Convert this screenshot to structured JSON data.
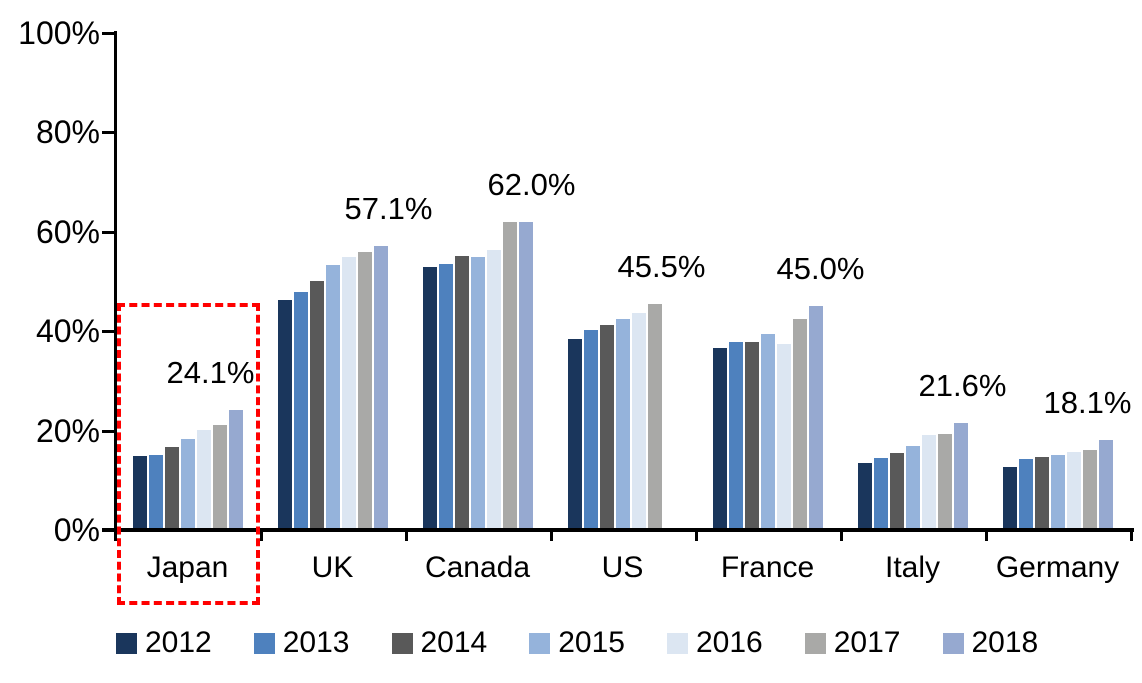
{
  "chart_data": {
    "type": "bar",
    "title": "",
    "xlabel": "",
    "ylabel": "",
    "categories": [
      "Japan",
      "UK",
      "Canada",
      "US",
      "France",
      "Italy",
      "Germany"
    ],
    "series": [
      {
        "name": "2012",
        "color": "#1A365C",
        "values": [
          14.9,
          46.3,
          53.0,
          38.4,
          36.7,
          13.4,
          12.7
        ]
      },
      {
        "name": "2013",
        "color": "#4E81BE",
        "values": [
          15.1,
          47.9,
          53.6,
          40.2,
          37.9,
          14.4,
          14.2
        ]
      },
      {
        "name": "2014",
        "color": "#595959",
        "values": [
          16.8,
          50.1,
          55.1,
          41.3,
          37.8,
          15.5,
          14.6
        ]
      },
      {
        "name": "2015",
        "color": "#95B3DB",
        "values": [
          18.3,
          53.4,
          54.9,
          42.4,
          39.5,
          17.0,
          15.0
        ]
      },
      {
        "name": "2016",
        "color": "#DCE6F2",
        "values": [
          20.1,
          54.9,
          56.4,
          43.7,
          37.4,
          19.2,
          15.7
        ]
      },
      {
        "name": "2017",
        "color": "#A9A9A7",
        "values": [
          21.2,
          55.9,
          61.9,
          45.5,
          42.5,
          19.4,
          16.1
        ]
      },
      {
        "name": "2018",
        "color": "#96A9D0",
        "values": [
          24.1,
          57.1,
          62.0,
          null,
          45.0,
          21.6,
          18.1
        ]
      }
    ],
    "data_labels": [
      "24.1%",
      "57.1%",
      "62.0%",
      "45.5%",
      "45.0%",
      "21.6%",
      "18.1%"
    ],
    "y_axis": {
      "min": 0,
      "max": 100,
      "tick_labels": [
        "0%",
        "20%",
        "40%",
        "60%",
        "80%",
        "100%"
      ],
      "grid": false
    },
    "legend": {
      "position": "bottom",
      "entries": [
        "2012",
        "2013",
        "2014",
        "2015",
        "2016",
        "2017",
        "2018"
      ]
    },
    "annotations": {
      "highlight_category": "Japan",
      "highlight_style": "red-dashed-box",
      "highlight_color": "#FF0000"
    },
    "axis_color": "#000000"
  }
}
